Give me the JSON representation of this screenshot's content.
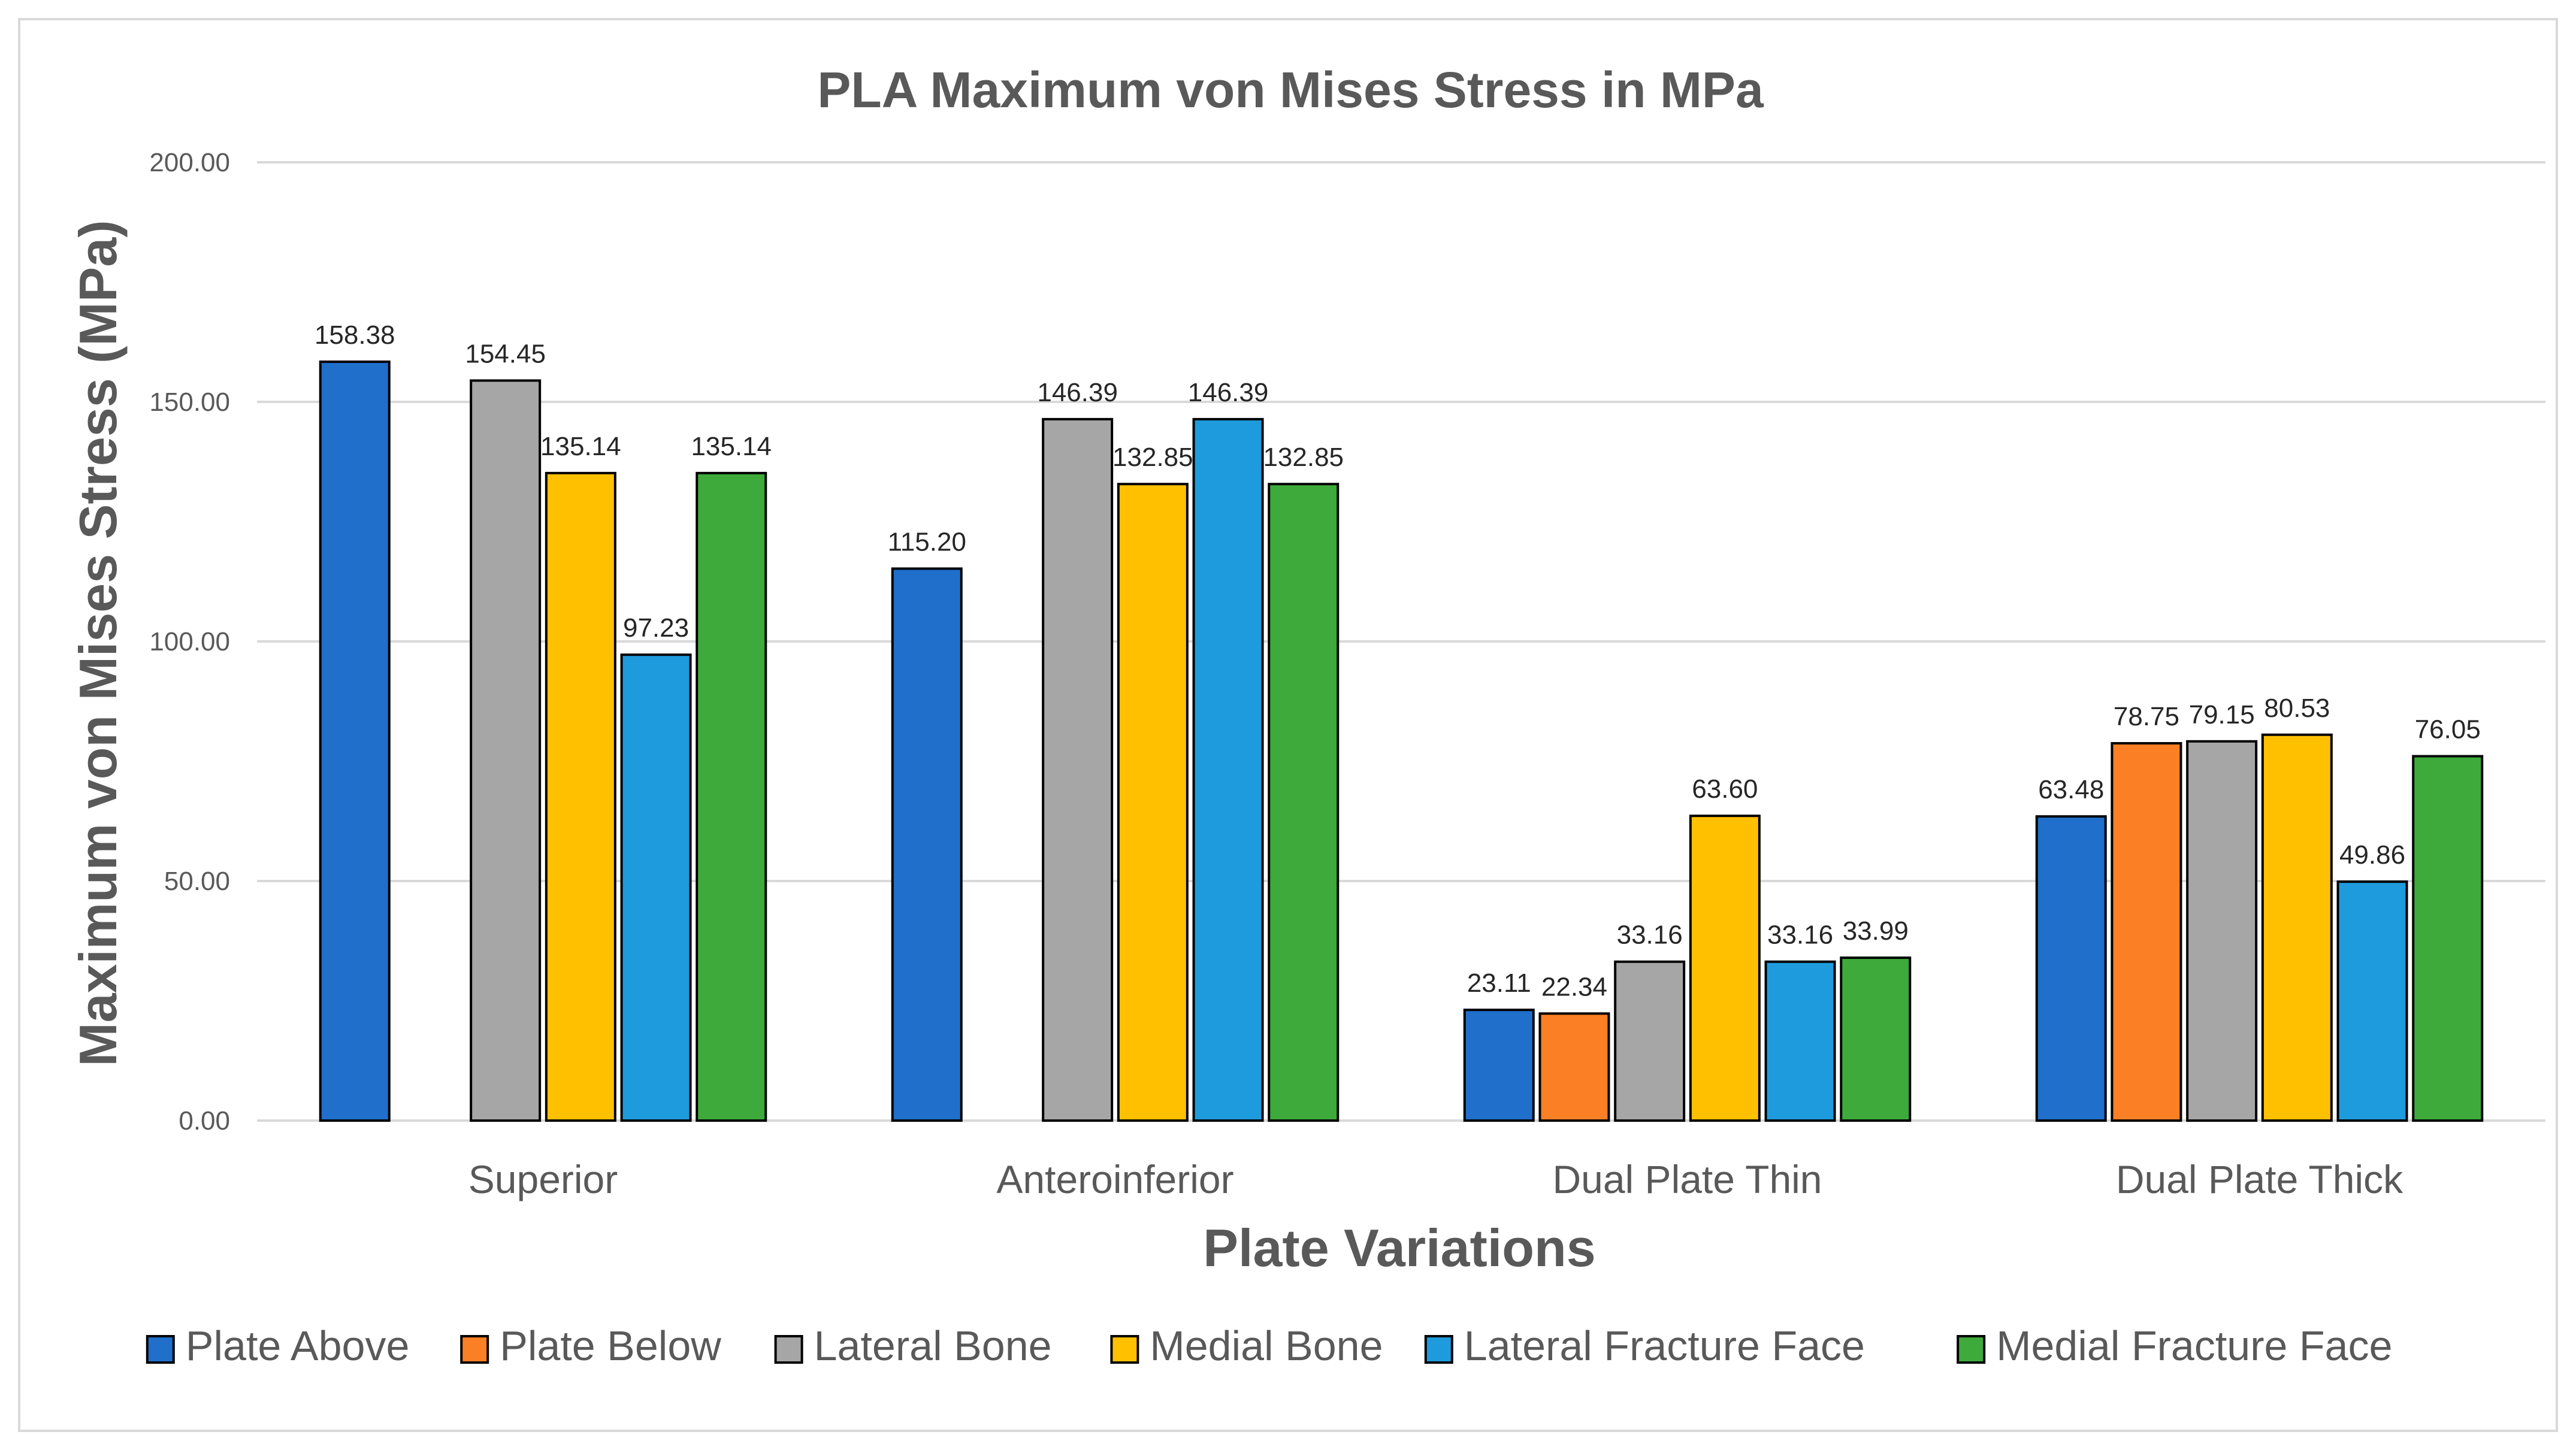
{
  "chart_data": {
    "type": "bar",
    "title": "PLA Maximum von Mises Stress in MPa",
    "xlabel": "Plate Variations",
    "ylabel": "Maximum von Mises Stress (MPa)",
    "ylim": [
      0,
      200
    ],
    "yticks": [
      0,
      50,
      100,
      150,
      200
    ],
    "ytick_labels": [
      "0.00",
      "50.00",
      "100.00",
      "150.00",
      "200.00"
    ],
    "grid": true,
    "legend_position": "bottom",
    "categories": [
      "Superior",
      "Anteroinferior",
      "Dual Plate Thin",
      "Dual Plate Thick"
    ],
    "series": [
      {
        "name": "Plate Above",
        "color": "#1f6fcb",
        "values": [
          158.38,
          115.2,
          23.11,
          63.48
        ],
        "labels": [
          "158.38",
          "115.20",
          "23.11",
          "63.48"
        ]
      },
      {
        "name": "Plate Below",
        "color": "#fb7f24",
        "values": [
          null,
          null,
          22.34,
          78.75
        ],
        "labels": [
          "",
          "",
          "22.34",
          "78.75"
        ]
      },
      {
        "name": "Lateral Bone",
        "color": "#a6a6a6",
        "values": [
          154.45,
          146.39,
          33.16,
          79.15
        ],
        "labels": [
          "154.45",
          "146.39",
          "33.16",
          "79.15"
        ]
      },
      {
        "name": "Medial Bone",
        "color": "#ffc000",
        "values": [
          135.14,
          132.85,
          63.6,
          80.53
        ],
        "labels": [
          "135.14",
          "132.85",
          "63.60",
          "80.53"
        ]
      },
      {
        "name": "Lateral Fracture Face",
        "color": "#1e9bdc",
        "values": [
          97.23,
          146.39,
          33.16,
          49.86
        ],
        "labels": [
          "97.23",
          "146.39",
          "33.16",
          "49.86"
        ]
      },
      {
        "name": "Medial Fracture Face",
        "color": "#3eaa3b",
        "values": [
          135.14,
          132.85,
          33.99,
          76.05
        ],
        "labels": [
          "135.14",
          "132.85",
          "33.99",
          "76.05"
        ]
      }
    ]
  }
}
